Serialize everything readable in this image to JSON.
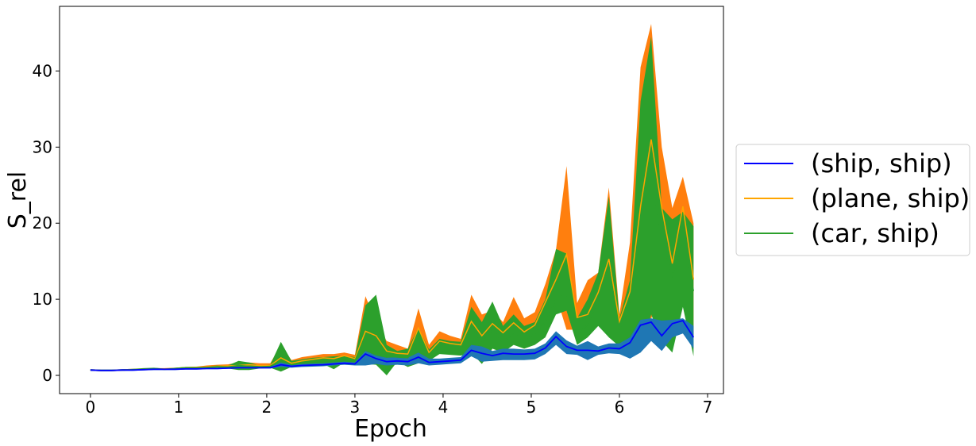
{
  "chart_data": {
    "type": "line",
    "xlabel": "Epoch",
    "ylabel": "S_rel",
    "xlim": [
      -0.35,
      7.18
    ],
    "ylim": [
      -2.4,
      48.5
    ],
    "xticks": [
      0,
      1,
      2,
      3,
      4,
      5,
      6,
      7
    ],
    "yticks": [
      0,
      10,
      20,
      30,
      40
    ],
    "legend_position": "right-outside",
    "x": [
      0.0,
      0.12,
      0.24,
      0.36,
      0.48,
      0.6,
      0.72,
      0.84,
      0.96,
      1.08,
      1.2,
      1.32,
      1.44,
      1.56,
      1.68,
      1.8,
      1.92,
      2.04,
      2.16,
      2.28,
      2.4,
      2.52,
      2.64,
      2.76,
      2.88,
      3.0,
      3.12,
      3.24,
      3.36,
      3.48,
      3.6,
      3.72,
      3.84,
      3.96,
      4.08,
      4.2,
      4.32,
      4.44,
      4.56,
      4.68,
      4.8,
      4.92,
      5.04,
      5.16,
      5.28,
      5.4,
      5.52,
      5.64,
      5.76,
      5.88,
      6.0,
      6.12,
      6.24,
      6.36,
      6.48,
      6.6,
      6.72,
      6.84
    ],
    "series": [
      {
        "name": "(plane, ship)",
        "line_color": "#ffa500",
        "band_color": "#ff7f0e",
        "mean": [
          0.7,
          0.65,
          0.65,
          0.7,
          0.75,
          0.8,
          0.85,
          0.85,
          0.9,
          1.0,
          1.05,
          1.1,
          1.2,
          1.25,
          1.3,
          1.4,
          1.3,
          1.3,
          2.3,
          1.6,
          1.9,
          2.1,
          2.3,
          2.2,
          2.6,
          2.2,
          5.8,
          5.2,
          3.2,
          2.9,
          2.8,
          6.2,
          3.0,
          4.5,
          4.2,
          4.0,
          7.1,
          5.2,
          6.8,
          5.6,
          6.9,
          5.7,
          6.6,
          9.6,
          12.6,
          15.9,
          7.6,
          8.0,
          10.9,
          15.3,
          7.1,
          11.0,
          22.2,
          31.0,
          22.0,
          14.7,
          22.2,
          12.6
        ],
        "lower": [
          0.6,
          0.55,
          0.55,
          0.6,
          0.65,
          0.7,
          0.75,
          0.75,
          0.8,
          0.9,
          0.95,
          1.0,
          1.1,
          1.15,
          1.1,
          1.2,
          1.1,
          1.1,
          1.0,
          1.3,
          1.5,
          1.7,
          1.8,
          1.8,
          2.1,
          1.8,
          4.0,
          3.8,
          2.6,
          2.3,
          2.2,
          3.6,
          2.5,
          3.3,
          3.2,
          3.2,
          5.0,
          4.0,
          5.0,
          4.4,
          5.0,
          4.4,
          5.0,
          7.5,
          10.5,
          6.0,
          6.0,
          6.5,
          7.5,
          6.5,
          6.0,
          6.5,
          6.0,
          7.5,
          10.0,
          13.0,
          13.5,
          5.0
        ],
        "upper": [
          0.8,
          0.75,
          0.75,
          0.8,
          0.85,
          0.9,
          0.95,
          0.95,
          1.0,
          1.1,
          1.15,
          1.3,
          1.4,
          1.45,
          1.7,
          1.7,
          1.6,
          1.6,
          4.0,
          2.0,
          2.4,
          2.6,
          2.8,
          2.8,
          3.0,
          2.7,
          10.4,
          7.0,
          4.5,
          4.0,
          3.5,
          8.8,
          4.0,
          5.8,
          5.2,
          4.8,
          10.6,
          8.0,
          8.5,
          7.0,
          10.3,
          7.5,
          8.3,
          12.0,
          16.5,
          27.5,
          9.5,
          12.5,
          13.5,
          24.7,
          8.0,
          17.5,
          40.5,
          46.2,
          30.0,
          22.0,
          26.1,
          20.0
        ]
      },
      {
        "name": "(car, ship)",
        "line_color": "#2ca02c",
        "band_color": "#2ca02c",
        "mean": [
          0.7,
          0.65,
          0.65,
          0.7,
          0.75,
          0.8,
          0.9,
          0.8,
          0.9,
          1.0,
          1.0,
          1.05,
          1.15,
          1.1,
          1.3,
          1.2,
          1.1,
          1.2,
          2.0,
          1.4,
          1.6,
          1.8,
          1.9,
          1.8,
          2.1,
          1.9,
          5.3,
          4.9,
          2.5,
          2.4,
          2.3,
          4.8,
          2.4,
          3.8,
          3.6,
          3.5,
          6.5,
          4.2,
          6.0,
          4.3,
          5.6,
          4.4,
          5.5,
          7.0,
          10.0,
          10.7,
          5.4,
          6.7,
          9.9,
          14.4,
          5.7,
          8.7,
          20.0,
          26.3,
          18.0,
          13.1,
          17.8,
          11.1
        ],
        "lower": [
          0.6,
          0.55,
          0.55,
          0.6,
          0.65,
          0.7,
          0.8,
          0.7,
          0.8,
          0.9,
          0.9,
          0.95,
          1.0,
          0.9,
          0.7,
          0.7,
          0.9,
          1.0,
          0.5,
          1.1,
          1.3,
          1.4,
          1.5,
          0.8,
          1.7,
          1.5,
          1.5,
          1.4,
          0.0,
          1.8,
          1.1,
          1.6,
          1.9,
          2.8,
          2.7,
          2.6,
          3.0,
          1.5,
          3.5,
          3.0,
          4.0,
          3.5,
          4.0,
          5.0,
          8.0,
          8.5,
          4.0,
          5.0,
          6.5,
          5.0,
          3.8,
          3.0,
          3.0,
          8.0,
          4.5,
          3.0,
          9.0,
          2.5
        ],
        "upper": [
          0.8,
          0.75,
          0.75,
          0.8,
          0.85,
          0.95,
          1.0,
          0.9,
          1.0,
          1.1,
          1.1,
          1.15,
          1.3,
          1.3,
          1.9,
          1.7,
          1.3,
          1.4,
          4.4,
          1.9,
          2.1,
          2.3,
          2.4,
          2.5,
          2.6,
          2.4,
          9.2,
          10.6,
          4.0,
          3.2,
          3.5,
          6.3,
          3.4,
          4.8,
          4.5,
          4.4,
          9.0,
          7.0,
          9.7,
          6.5,
          8.0,
          6.5,
          7.0,
          10.0,
          16.6,
          16.0,
          7.5,
          10.0,
          13.5,
          23.5,
          7.5,
          12.5,
          36.0,
          44.5,
          22.0,
          20.5,
          21.5,
          19.6
        ]
      },
      {
        "name": "(ship, ship)",
        "line_color": "#0000ff",
        "band_color": "#1f77b4",
        "mean": [
          0.7,
          0.65,
          0.65,
          0.7,
          0.7,
          0.75,
          0.8,
          0.8,
          0.8,
          0.85,
          0.85,
          0.9,
          0.9,
          0.95,
          1.0,
          1.0,
          1.0,
          1.0,
          1.4,
          1.2,
          1.3,
          1.35,
          1.4,
          1.5,
          1.6,
          1.5,
          2.8,
          2.2,
          1.8,
          1.9,
          1.8,
          2.4,
          1.7,
          1.8,
          1.9,
          2.0,
          3.3,
          2.9,
          2.6,
          2.9,
          2.8,
          2.8,
          2.9,
          3.6,
          5.1,
          3.8,
          3.3,
          3.3,
          3.2,
          3.6,
          3.5,
          4.3,
          6.6,
          7.0,
          5.2,
          6.8,
          7.2,
          5.0
        ],
        "lower": [
          0.6,
          0.55,
          0.55,
          0.6,
          0.6,
          0.65,
          0.7,
          0.7,
          0.7,
          0.75,
          0.75,
          0.8,
          0.8,
          0.85,
          0.9,
          0.9,
          0.9,
          0.9,
          1.1,
          1.0,
          1.1,
          1.15,
          1.2,
          1.3,
          1.4,
          1.3,
          1.3,
          1.5,
          1.3,
          1.4,
          1.3,
          1.6,
          1.3,
          1.4,
          1.5,
          1.6,
          2.5,
          1.8,
          1.9,
          2.0,
          2.0,
          2.0,
          2.1,
          2.8,
          4.0,
          2.8,
          2.7,
          2.0,
          2.7,
          2.9,
          2.8,
          2.2,
          3.0,
          4.5,
          3.2,
          5.0,
          5.5,
          3.5
        ],
        "upper": [
          0.8,
          0.75,
          0.75,
          0.8,
          0.8,
          0.85,
          0.9,
          0.9,
          0.9,
          0.95,
          0.95,
          1.0,
          1.0,
          1.05,
          1.1,
          1.1,
          1.1,
          1.1,
          1.7,
          1.4,
          1.5,
          1.55,
          1.6,
          1.7,
          1.8,
          1.7,
          3.2,
          2.6,
          2.3,
          2.4,
          2.3,
          3.0,
          2.2,
          2.2,
          2.3,
          2.4,
          4.0,
          3.8,
          3.2,
          3.5,
          3.5,
          3.4,
          3.5,
          4.2,
          5.8,
          4.6,
          3.9,
          4.5,
          3.8,
          4.2,
          4.2,
          5.0,
          7.3,
          7.5,
          7.2,
          7.3,
          7.5,
          6.5
        ]
      }
    ],
    "legend_order": [
      "(ship, ship)",
      "(plane, ship)",
      "(car, ship)"
    ]
  }
}
